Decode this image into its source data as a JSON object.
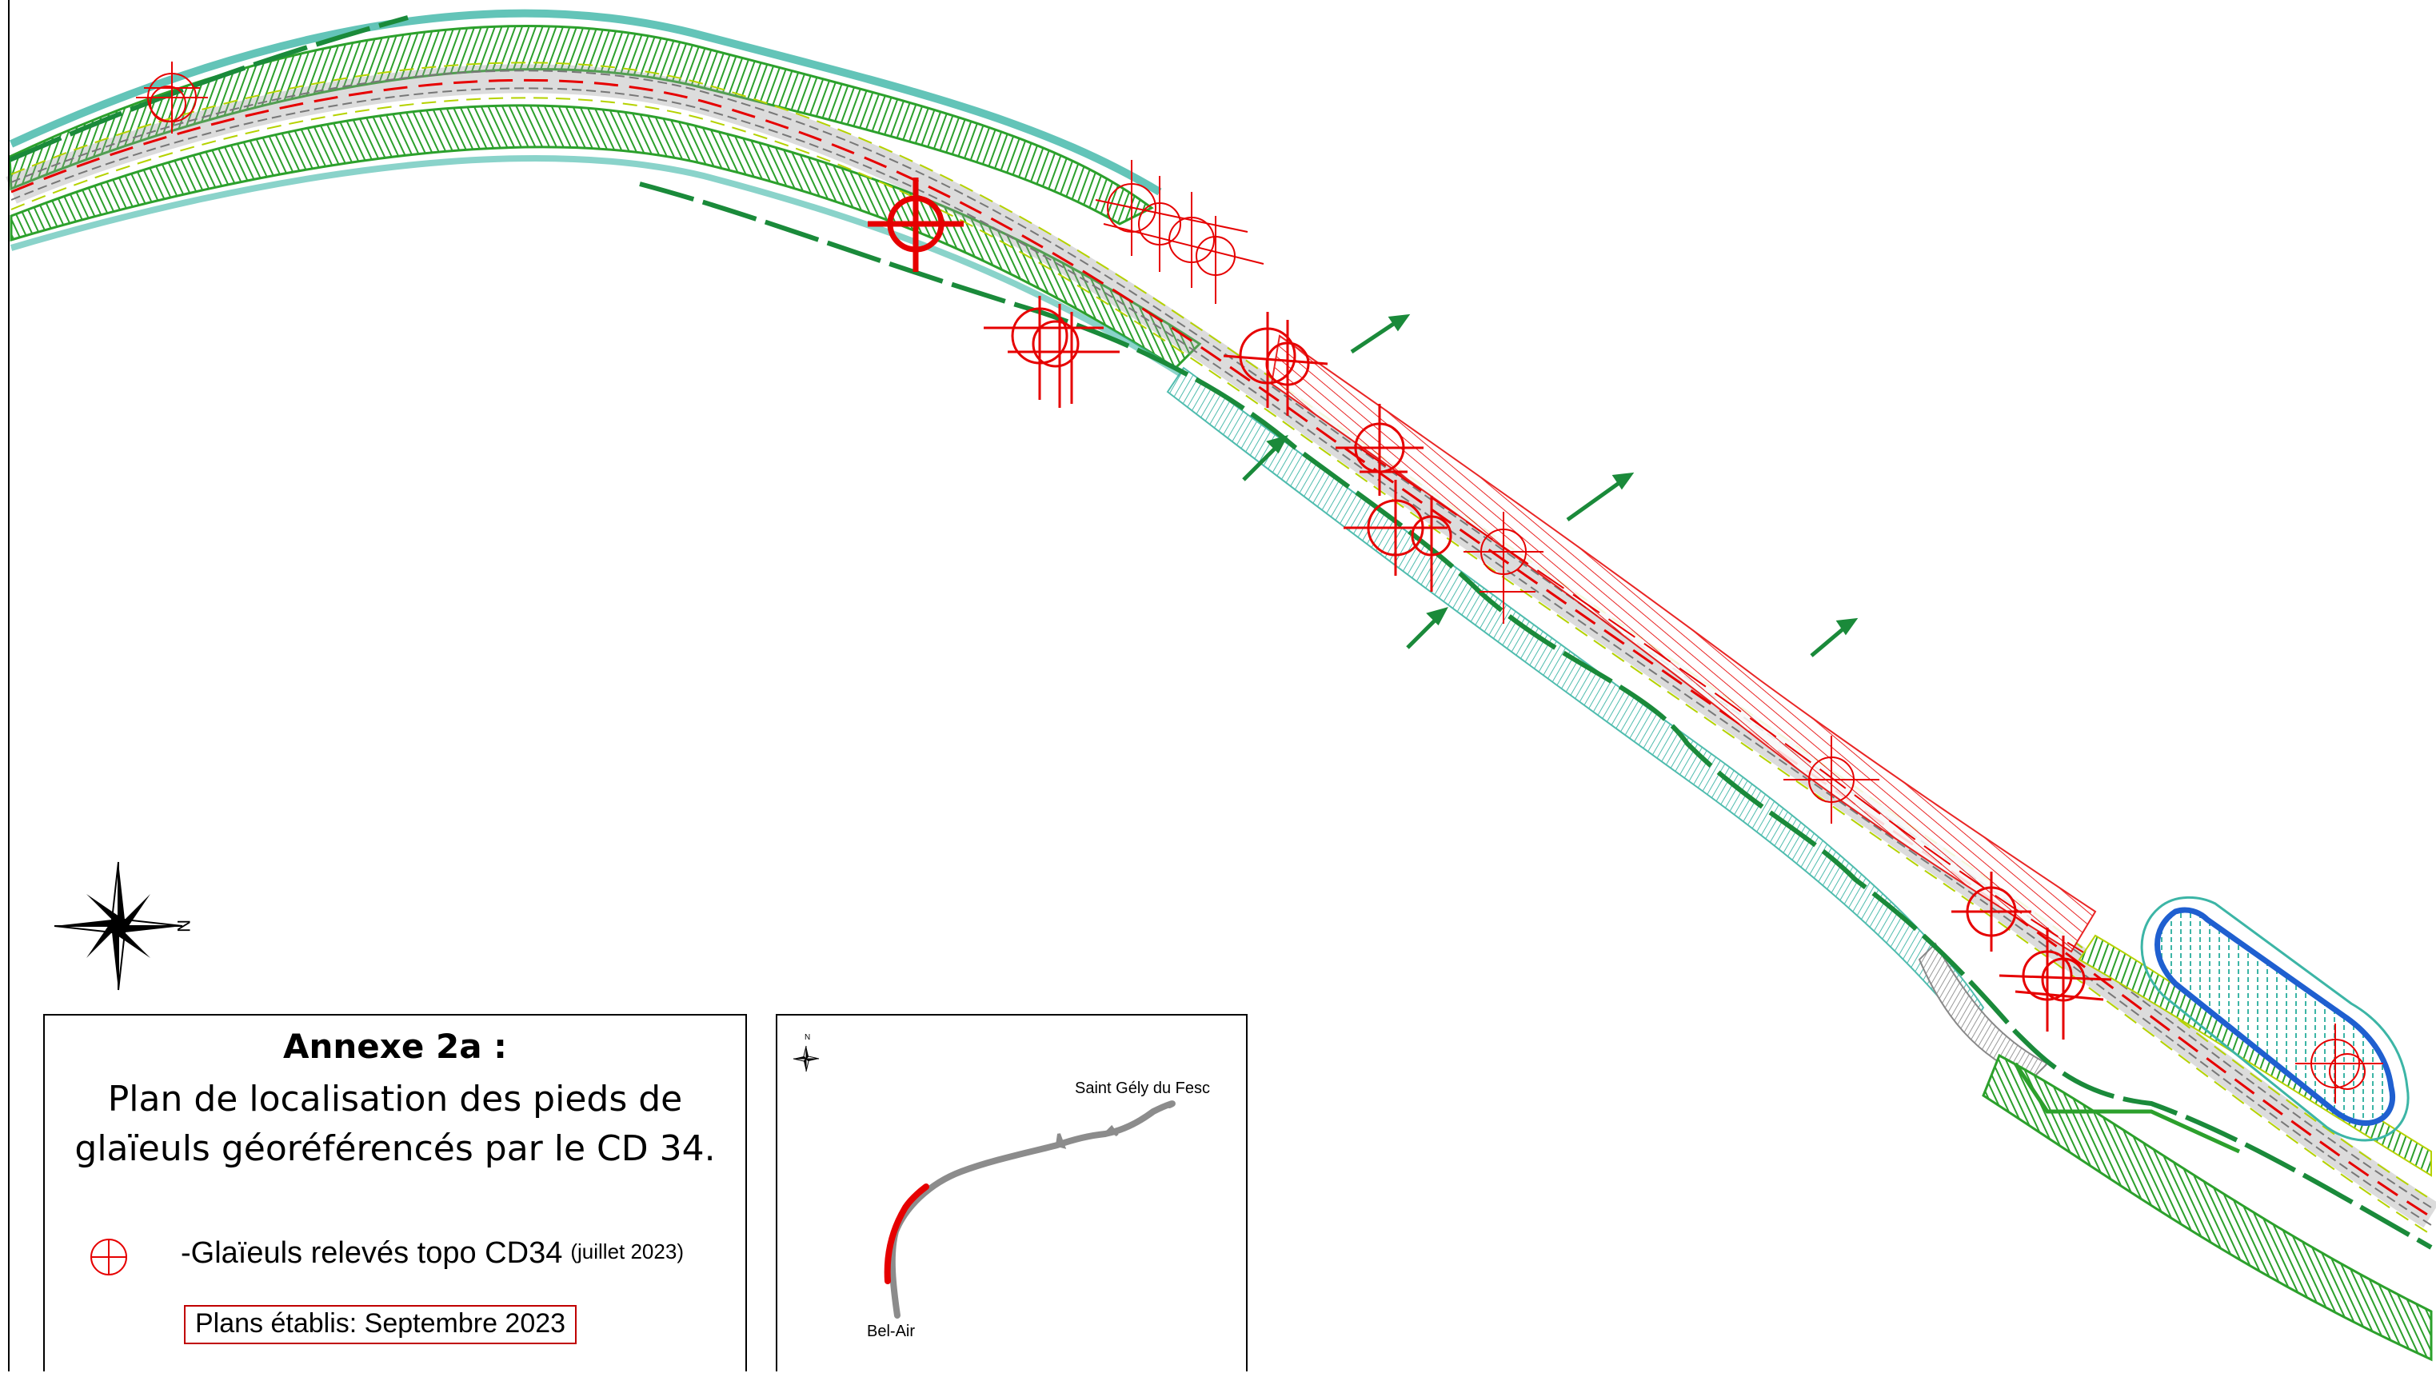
{
  "annex": {
    "title": "Annexe 2a :",
    "subtitle": "Plan de localisation des pieds de\nglaïeuls géoréférencés par le CD 34."
  },
  "legend": {
    "item_label": "-Glaïeuls relevés topo CD34",
    "item_note": "(juillet 2023)",
    "symbol_color": "#e60000"
  },
  "plans_date": "Plans établis: Septembre 2023",
  "compass": {
    "north_label": "N"
  },
  "inset": {
    "north_label": "N",
    "place_top": "Saint Gély du Fesc",
    "place_bottom": "Bel-Air",
    "highlight_color": "#e60000",
    "route_color": "#8c8c8c"
  },
  "colors": {
    "embankment_green": "#2ca02c",
    "boundary_dark_green": "#1a8a3a",
    "axis_red": "#e60000",
    "road_gray": "#9a9a9a",
    "teal": "#3cb5a6",
    "yellow_green": "#b5d200",
    "basin_blue": "#1f5fd0"
  },
  "icons": [
    "compass-rose-icon",
    "plant-location-crosshair-icon",
    "arrow-icon"
  ]
}
